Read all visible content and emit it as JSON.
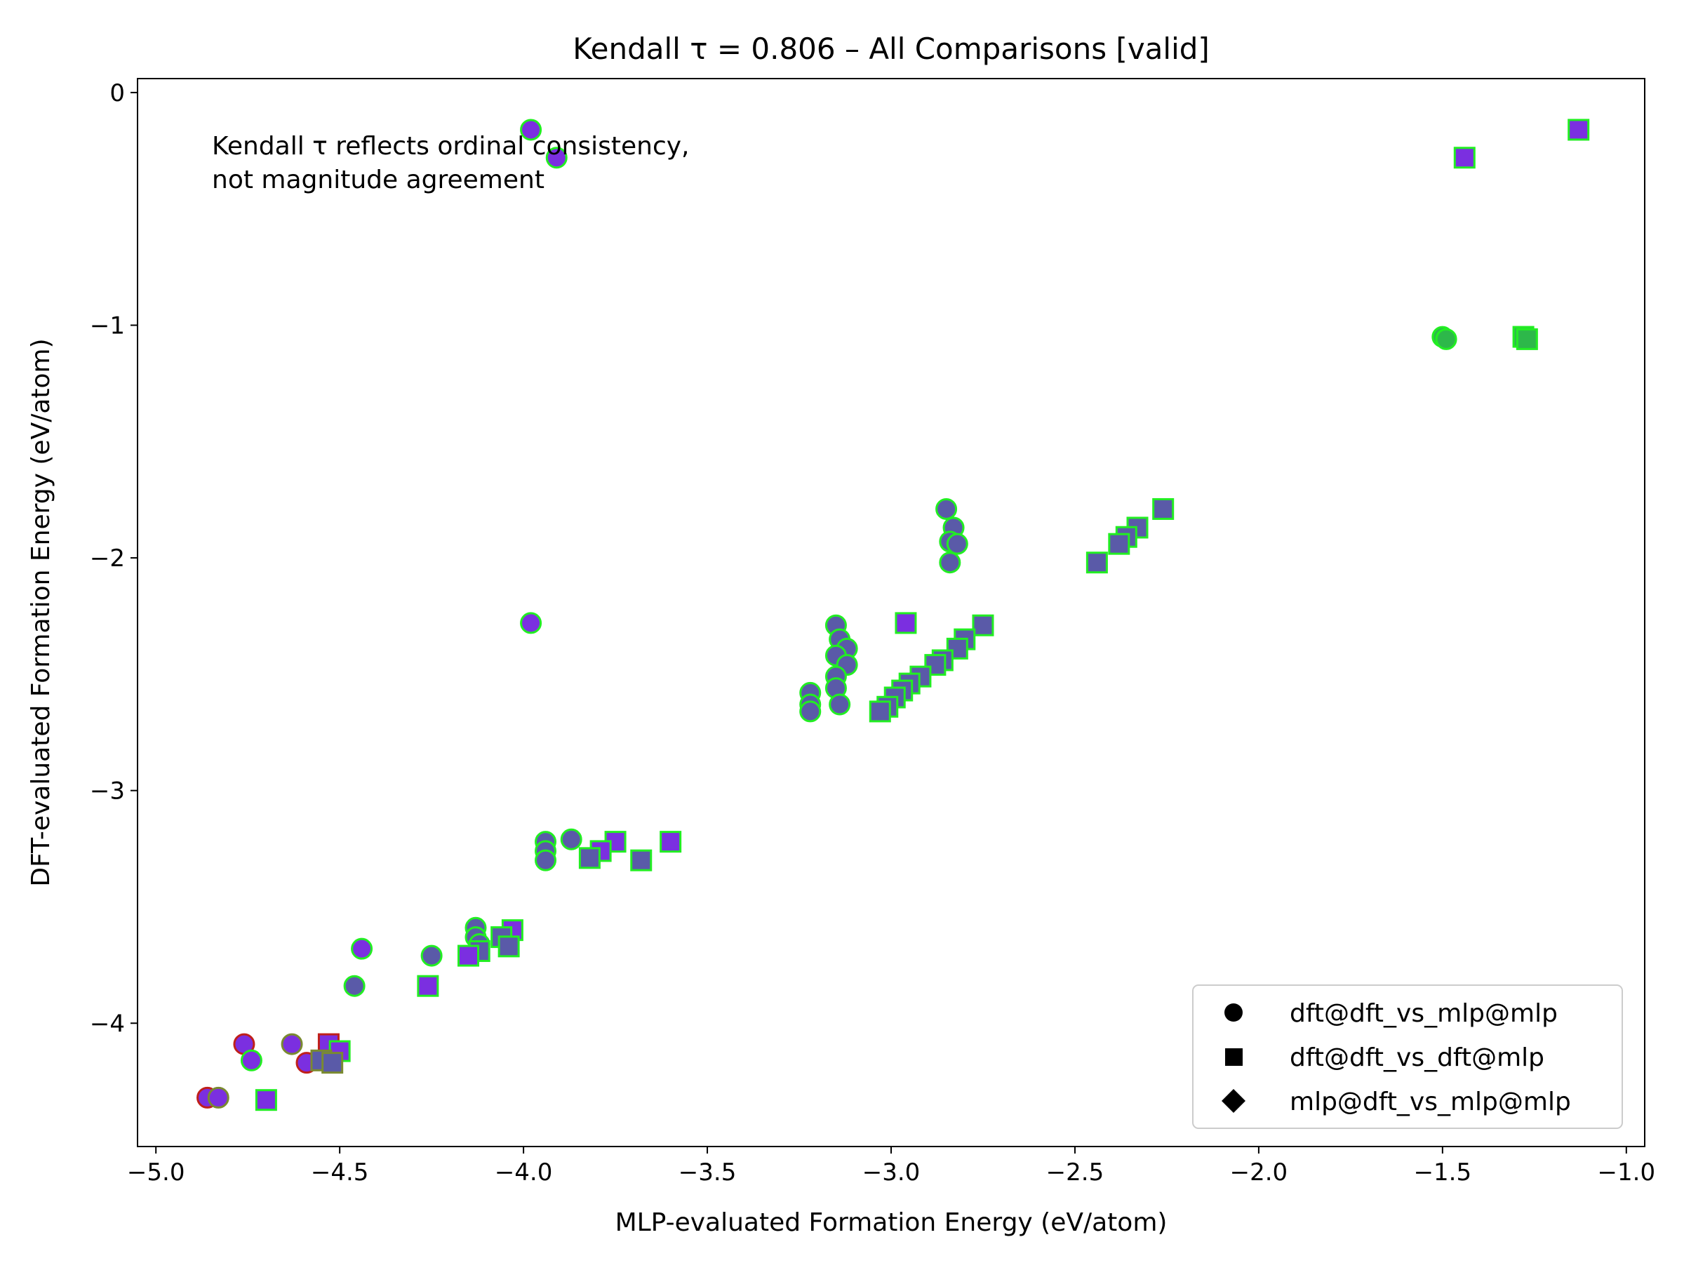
{
  "chart_data": {
    "type": "scatter",
    "title": "Kendall τ = 0.806 – All Comparisons [valid]",
    "xlabel": "MLP-evaluated Formation Energy (eV/atom)",
    "ylabel": "DFT-evaluated Formation Energy (eV/atom)",
    "xlim": [
      -5.05,
      -0.95
    ],
    "ylim": [
      -4.53,
      0.06
    ],
    "x_ticks": [
      -5.0,
      -4.5,
      -4.0,
      -3.5,
      -3.0,
      -2.5,
      -2.0,
      -1.5,
      -1.0
    ],
    "x_tick_labels": [
      "−5.0",
      "−4.5",
      "−4.0",
      "−3.5",
      "−3.0",
      "−2.5",
      "−2.0",
      "−1.5",
      "−1.0"
    ],
    "y_ticks": [
      0,
      -1,
      -2,
      -3,
      -4
    ],
    "y_tick_labels": [
      "0",
      "−1",
      "−2",
      "−3",
      "−4"
    ],
    "grid": false,
    "legend_position": "lower right",
    "annotation_lines": [
      "Kendall τ reflects ordinal consistency,",
      "not magnitude agreement"
    ],
    "colors": {
      "purple": "#7b2fe0",
      "slate": "#5a5aa8",
      "green_fill": "#2db84a",
      "green_edge": "#22ee22",
      "olive_edge": "#7a8a30",
      "red_edge": "#c0201a"
    },
    "series": [
      {
        "name": "dft@dft_vs_mlp@mlp",
        "marker": "circle",
        "points": [
          {
            "x": -3.98,
            "y": -0.16,
            "fill": "purple",
            "edge": "green_edge"
          },
          {
            "x": -3.91,
            "y": -0.28,
            "fill": "purple",
            "edge": "green_edge"
          },
          {
            "x": -1.5,
            "y": -1.05,
            "fill": "green_fill",
            "edge": "green_edge"
          },
          {
            "x": -1.49,
            "y": -1.06,
            "fill": "green_fill",
            "edge": "green_edge"
          },
          {
            "x": -2.85,
            "y": -1.79,
            "fill": "slate",
            "edge": "green_edge"
          },
          {
            "x": -2.83,
            "y": -1.87,
            "fill": "slate",
            "edge": "green_edge"
          },
          {
            "x": -2.84,
            "y": -1.93,
            "fill": "slate",
            "edge": "green_edge"
          },
          {
            "x": -2.82,
            "y": -1.94,
            "fill": "slate",
            "edge": "green_edge"
          },
          {
            "x": -2.84,
            "y": -2.02,
            "fill": "slate",
            "edge": "green_edge"
          },
          {
            "x": -3.98,
            "y": -2.28,
            "fill": "purple",
            "edge": "green_edge"
          },
          {
            "x": -3.15,
            "y": -2.29,
            "fill": "slate",
            "edge": "green_edge"
          },
          {
            "x": -3.14,
            "y": -2.35,
            "fill": "slate",
            "edge": "green_edge"
          },
          {
            "x": -3.12,
            "y": -2.39,
            "fill": "slate",
            "edge": "green_edge"
          },
          {
            "x": -3.15,
            "y": -2.42,
            "fill": "slate",
            "edge": "green_edge"
          },
          {
            "x": -3.12,
            "y": -2.46,
            "fill": "slate",
            "edge": "green_edge"
          },
          {
            "x": -3.15,
            "y": -2.51,
            "fill": "slate",
            "edge": "green_edge"
          },
          {
            "x": -3.15,
            "y": -2.56,
            "fill": "slate",
            "edge": "green_edge"
          },
          {
            "x": -3.22,
            "y": -2.58,
            "fill": "slate",
            "edge": "green_edge"
          },
          {
            "x": -3.22,
            "y": -2.63,
            "fill": "slate",
            "edge": "green_edge"
          },
          {
            "x": -3.14,
            "y": -2.63,
            "fill": "slate",
            "edge": "green_edge"
          },
          {
            "x": -3.22,
            "y": -2.66,
            "fill": "slate",
            "edge": "green_edge"
          },
          {
            "x": -3.94,
            "y": -3.22,
            "fill": "slate",
            "edge": "green_edge"
          },
          {
            "x": -3.94,
            "y": -3.26,
            "fill": "slate",
            "edge": "green_edge"
          },
          {
            "x": -3.94,
            "y": -3.3,
            "fill": "slate",
            "edge": "green_edge"
          },
          {
            "x": -3.87,
            "y": -3.21,
            "fill": "slate",
            "edge": "green_edge"
          },
          {
            "x": -4.13,
            "y": -3.59,
            "fill": "slate",
            "edge": "green_edge"
          },
          {
            "x": -4.13,
            "y": -3.63,
            "fill": "slate",
            "edge": "green_edge"
          },
          {
            "x": -4.12,
            "y": -3.66,
            "fill": "slate",
            "edge": "green_edge"
          },
          {
            "x": -4.44,
            "y": -3.68,
            "fill": "purple",
            "edge": "green_edge"
          },
          {
            "x": -4.25,
            "y": -3.71,
            "fill": "slate",
            "edge": "green_edge"
          },
          {
            "x": -4.46,
            "y": -3.84,
            "fill": "slate",
            "edge": "green_edge"
          },
          {
            "x": -4.76,
            "y": -4.09,
            "fill": "purple",
            "edge": "red_edge"
          },
          {
            "x": -4.63,
            "y": -4.09,
            "fill": "purple",
            "edge": "olive_edge"
          },
          {
            "x": -4.74,
            "y": -4.16,
            "fill": "purple",
            "edge": "green_edge"
          },
          {
            "x": -4.59,
            "y": -4.17,
            "fill": "purple",
            "edge": "red_edge"
          },
          {
            "x": -4.86,
            "y": -4.32,
            "fill": "purple",
            "edge": "red_edge"
          },
          {
            "x": -4.83,
            "y": -4.32,
            "fill": "purple",
            "edge": "olive_edge"
          }
        ]
      },
      {
        "name": "dft@dft_vs_dft@mlp",
        "marker": "square",
        "points": [
          {
            "x": -1.13,
            "y": -0.16,
            "fill": "purple",
            "edge": "green_edge"
          },
          {
            "x": -1.44,
            "y": -0.28,
            "fill": "purple",
            "edge": "green_edge"
          },
          {
            "x": -1.28,
            "y": -1.05,
            "fill": "green_fill",
            "edge": "green_edge"
          },
          {
            "x": -1.27,
            "y": -1.06,
            "fill": "green_fill",
            "edge": "green_edge"
          },
          {
            "x": -2.26,
            "y": -1.79,
            "fill": "slate",
            "edge": "green_edge"
          },
          {
            "x": -2.33,
            "y": -1.87,
            "fill": "slate",
            "edge": "green_edge"
          },
          {
            "x": -2.36,
            "y": -1.91,
            "fill": "slate",
            "edge": "green_edge"
          },
          {
            "x": -2.38,
            "y": -1.94,
            "fill": "slate",
            "edge": "green_edge"
          },
          {
            "x": -2.44,
            "y": -2.02,
            "fill": "slate",
            "edge": "green_edge"
          },
          {
            "x": -2.96,
            "y": -2.28,
            "fill": "purple",
            "edge": "green_edge"
          },
          {
            "x": -2.75,
            "y": -2.29,
            "fill": "slate",
            "edge": "green_edge"
          },
          {
            "x": -2.8,
            "y": -2.35,
            "fill": "slate",
            "edge": "green_edge"
          },
          {
            "x": -2.82,
            "y": -2.39,
            "fill": "slate",
            "edge": "green_edge"
          },
          {
            "x": -2.86,
            "y": -2.44,
            "fill": "slate",
            "edge": "green_edge"
          },
          {
            "x": -2.88,
            "y": -2.46,
            "fill": "slate",
            "edge": "green_edge"
          },
          {
            "x": -2.92,
            "y": -2.51,
            "fill": "slate",
            "edge": "green_edge"
          },
          {
            "x": -2.95,
            "y": -2.54,
            "fill": "slate",
            "edge": "green_edge"
          },
          {
            "x": -2.97,
            "y": -2.57,
            "fill": "slate",
            "edge": "green_edge"
          },
          {
            "x": -2.99,
            "y": -2.6,
            "fill": "slate",
            "edge": "green_edge"
          },
          {
            "x": -3.01,
            "y": -2.64,
            "fill": "slate",
            "edge": "green_edge"
          },
          {
            "x": -3.03,
            "y": -2.66,
            "fill": "slate",
            "edge": "green_edge"
          },
          {
            "x": -3.6,
            "y": -3.22,
            "fill": "purple",
            "edge": "green_edge"
          },
          {
            "x": -3.75,
            "y": -3.22,
            "fill": "purple",
            "edge": "green_edge"
          },
          {
            "x": -3.79,
            "y": -3.26,
            "fill": "purple",
            "edge": "green_edge"
          },
          {
            "x": -3.82,
            "y": -3.29,
            "fill": "slate",
            "edge": "green_edge"
          },
          {
            "x": -3.68,
            "y": -3.3,
            "fill": "slate",
            "edge": "green_edge"
          },
          {
            "x": -4.03,
            "y": -3.6,
            "fill": "purple",
            "edge": "green_edge"
          },
          {
            "x": -4.06,
            "y": -3.63,
            "fill": "slate",
            "edge": "green_edge"
          },
          {
            "x": -4.04,
            "y": -3.67,
            "fill": "slate",
            "edge": "green_edge"
          },
          {
            "x": -4.12,
            "y": -3.69,
            "fill": "slate",
            "edge": "green_edge"
          },
          {
            "x": -4.15,
            "y": -3.71,
            "fill": "purple",
            "edge": "green_edge"
          },
          {
            "x": -4.26,
            "y": -3.84,
            "fill": "purple",
            "edge": "green_edge"
          },
          {
            "x": -4.53,
            "y": -4.09,
            "fill": "purple",
            "edge": "red_edge"
          },
          {
            "x": -4.5,
            "y": -4.12,
            "fill": "purple",
            "edge": "green_edge"
          },
          {
            "x": -4.55,
            "y": -4.16,
            "fill": "slate",
            "edge": "olive_edge"
          },
          {
            "x": -4.52,
            "y": -4.17,
            "fill": "slate",
            "edge": "olive_edge"
          },
          {
            "x": -4.7,
            "y": -4.33,
            "fill": "purple",
            "edge": "green_edge"
          }
        ]
      },
      {
        "name": "mlp@dft_vs_mlp@mlp",
        "marker": "diamond",
        "points": []
      }
    ]
  }
}
